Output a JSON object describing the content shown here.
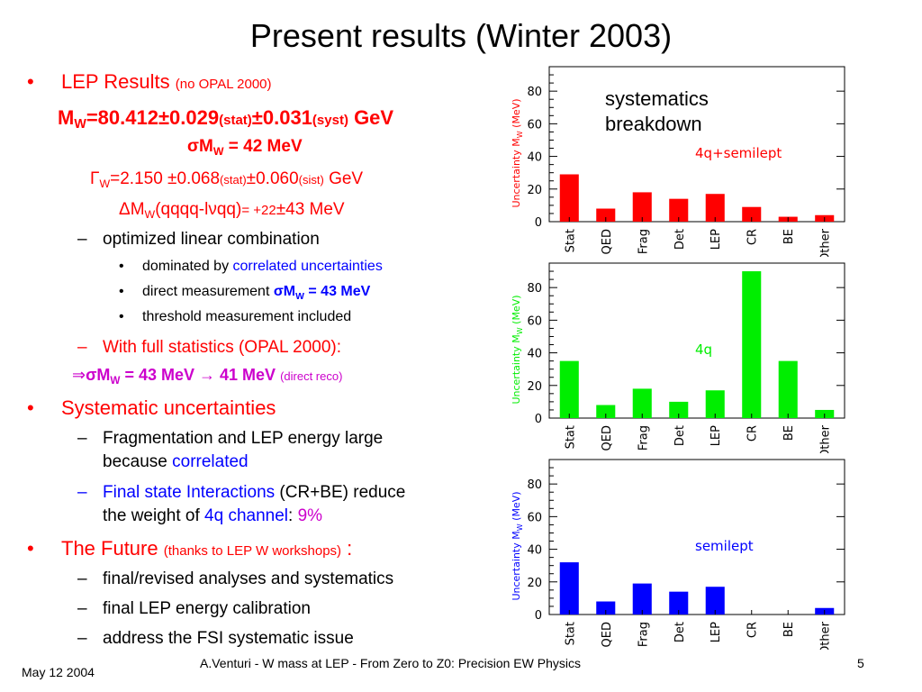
{
  "slide": {
    "title": "Present results (Winter 2003)",
    "date": "May 12 2004",
    "footer_center": "A.Venturi - W mass at LEP - From Zero to Z0: Precision EW Physics",
    "page_number": "5"
  },
  "body": {
    "b1": {
      "label": "LEP Results",
      "note": "(no OPAL 2000)"
    },
    "mw_line": {
      "mw": "M",
      "w": "W",
      "value": "=80.412",
      "pm1": "±",
      "stat": "0.029",
      "stat_lbl": "(stat)",
      "pm2": "±",
      "syst": "0.031",
      "syst_lbl": "(syst)",
      "unit": "GeV"
    },
    "sigma_line": {
      "sigma": "σ",
      "m": "M",
      "w": "W",
      "rest": " = 42 MeV"
    },
    "gamma_line": {
      "gamma": "Γ",
      "w": "W",
      "value": "=2.150 ",
      "pm1": "±",
      "stat": "0.068",
      "stat_lbl": "(stat)",
      "pm2": "±",
      "syst": "0.060",
      "syst_lbl": "(sist)",
      "unit": " GeV"
    },
    "delta_line": {
      "delta": "Δ",
      "m": "M",
      "w": "W",
      "paren": "(qqqq-l",
      "nu": "ν",
      "close": "qq)",
      "eq": "= +22",
      "pm": "±",
      "val": "43 MeV"
    },
    "sub1": "optimized linear combination",
    "sub1_items": {
      "a_text": "dominated by ",
      "a_hl": "correlated uncertainties",
      "b_text": "direct measurement ",
      "b_sigma": "σ",
      "b_m": "M",
      "b_w": "W",
      "b_rest": " = 43 MeV",
      "c_text": "threshold measurement included"
    },
    "sub2": "With full statistics (OPAL 2000):",
    "arrow_line": {
      "arrow": "⇒",
      "sigma": "σ",
      "m": "M",
      "w": "W",
      "mid": " = 43 MeV ",
      "to": "→",
      "end": " 41 MeV",
      "note": "(direct reco)"
    },
    "b2": "Systematic uncertainties",
    "b2_sub1": {
      "l1": "Fragmentation and LEP energy large",
      "l2": "because ",
      "hl": "correlated"
    },
    "b2_sub2": {
      "hl": "Final state Interactions",
      "rest": " (CR+BE) reduce",
      "l2": "the weight of ",
      "hl2": "4q channel",
      "colon": ": ",
      "pct": "9%"
    },
    "b3": {
      "label": "The Future",
      "note": "(thanks to LEP W workshops)",
      "colon": " :"
    },
    "b3_items": [
      "final/revised analyses and systematics",
      "final LEP energy calibration",
      "address the FSI systematic issue"
    ],
    "bullet_dot": "•",
    "dash": "–"
  },
  "side_note": {
    "l1": "systematics",
    "l2": "breakdown"
  },
  "chart_data": [
    {
      "type": "bar",
      "categories": [
        "Stat",
        "QED",
        "Frag",
        "Det",
        "LEP",
        "CR",
        "BE",
        "Other"
      ],
      "values": [
        29,
        8,
        18,
        14,
        17,
        9,
        3,
        4
      ],
      "label": "4q+semilept",
      "ylabel": "Uncertainty M",
      "ylabel_sub": "W",
      "ylabel_unit": " (MeV)",
      "yticks": [
        0,
        20,
        40,
        60,
        80
      ],
      "ylim": [
        0,
        95
      ],
      "color": "#ff0000"
    },
    {
      "type": "bar",
      "categories": [
        "Stat",
        "QED",
        "Frag",
        "Det",
        "LEP",
        "CR",
        "BE",
        "Other"
      ],
      "values": [
        35,
        8,
        18,
        10,
        17,
        90,
        35,
        5
      ],
      "label": "4q",
      "ylabel": "Uncertainty M",
      "ylabel_sub": "W",
      "ylabel_unit": " (MeV)",
      "yticks": [
        0,
        20,
        40,
        60,
        80
      ],
      "ylim": [
        0,
        95
      ],
      "color": "#00ee00"
    },
    {
      "type": "bar",
      "categories": [
        "Stat",
        "QED",
        "Frag",
        "Det",
        "LEP",
        "CR",
        "BE",
        "Other"
      ],
      "values": [
        32,
        8,
        19,
        14,
        17,
        0,
        0,
        4
      ],
      "label": "semilept",
      "ylabel": "Uncertainty M",
      "ylabel_sub": "W",
      "ylabel_unit": " (MeV)",
      "yticks": [
        0,
        20,
        40,
        60,
        80
      ],
      "ylim": [
        0,
        95
      ],
      "color": "#0000ff"
    }
  ]
}
